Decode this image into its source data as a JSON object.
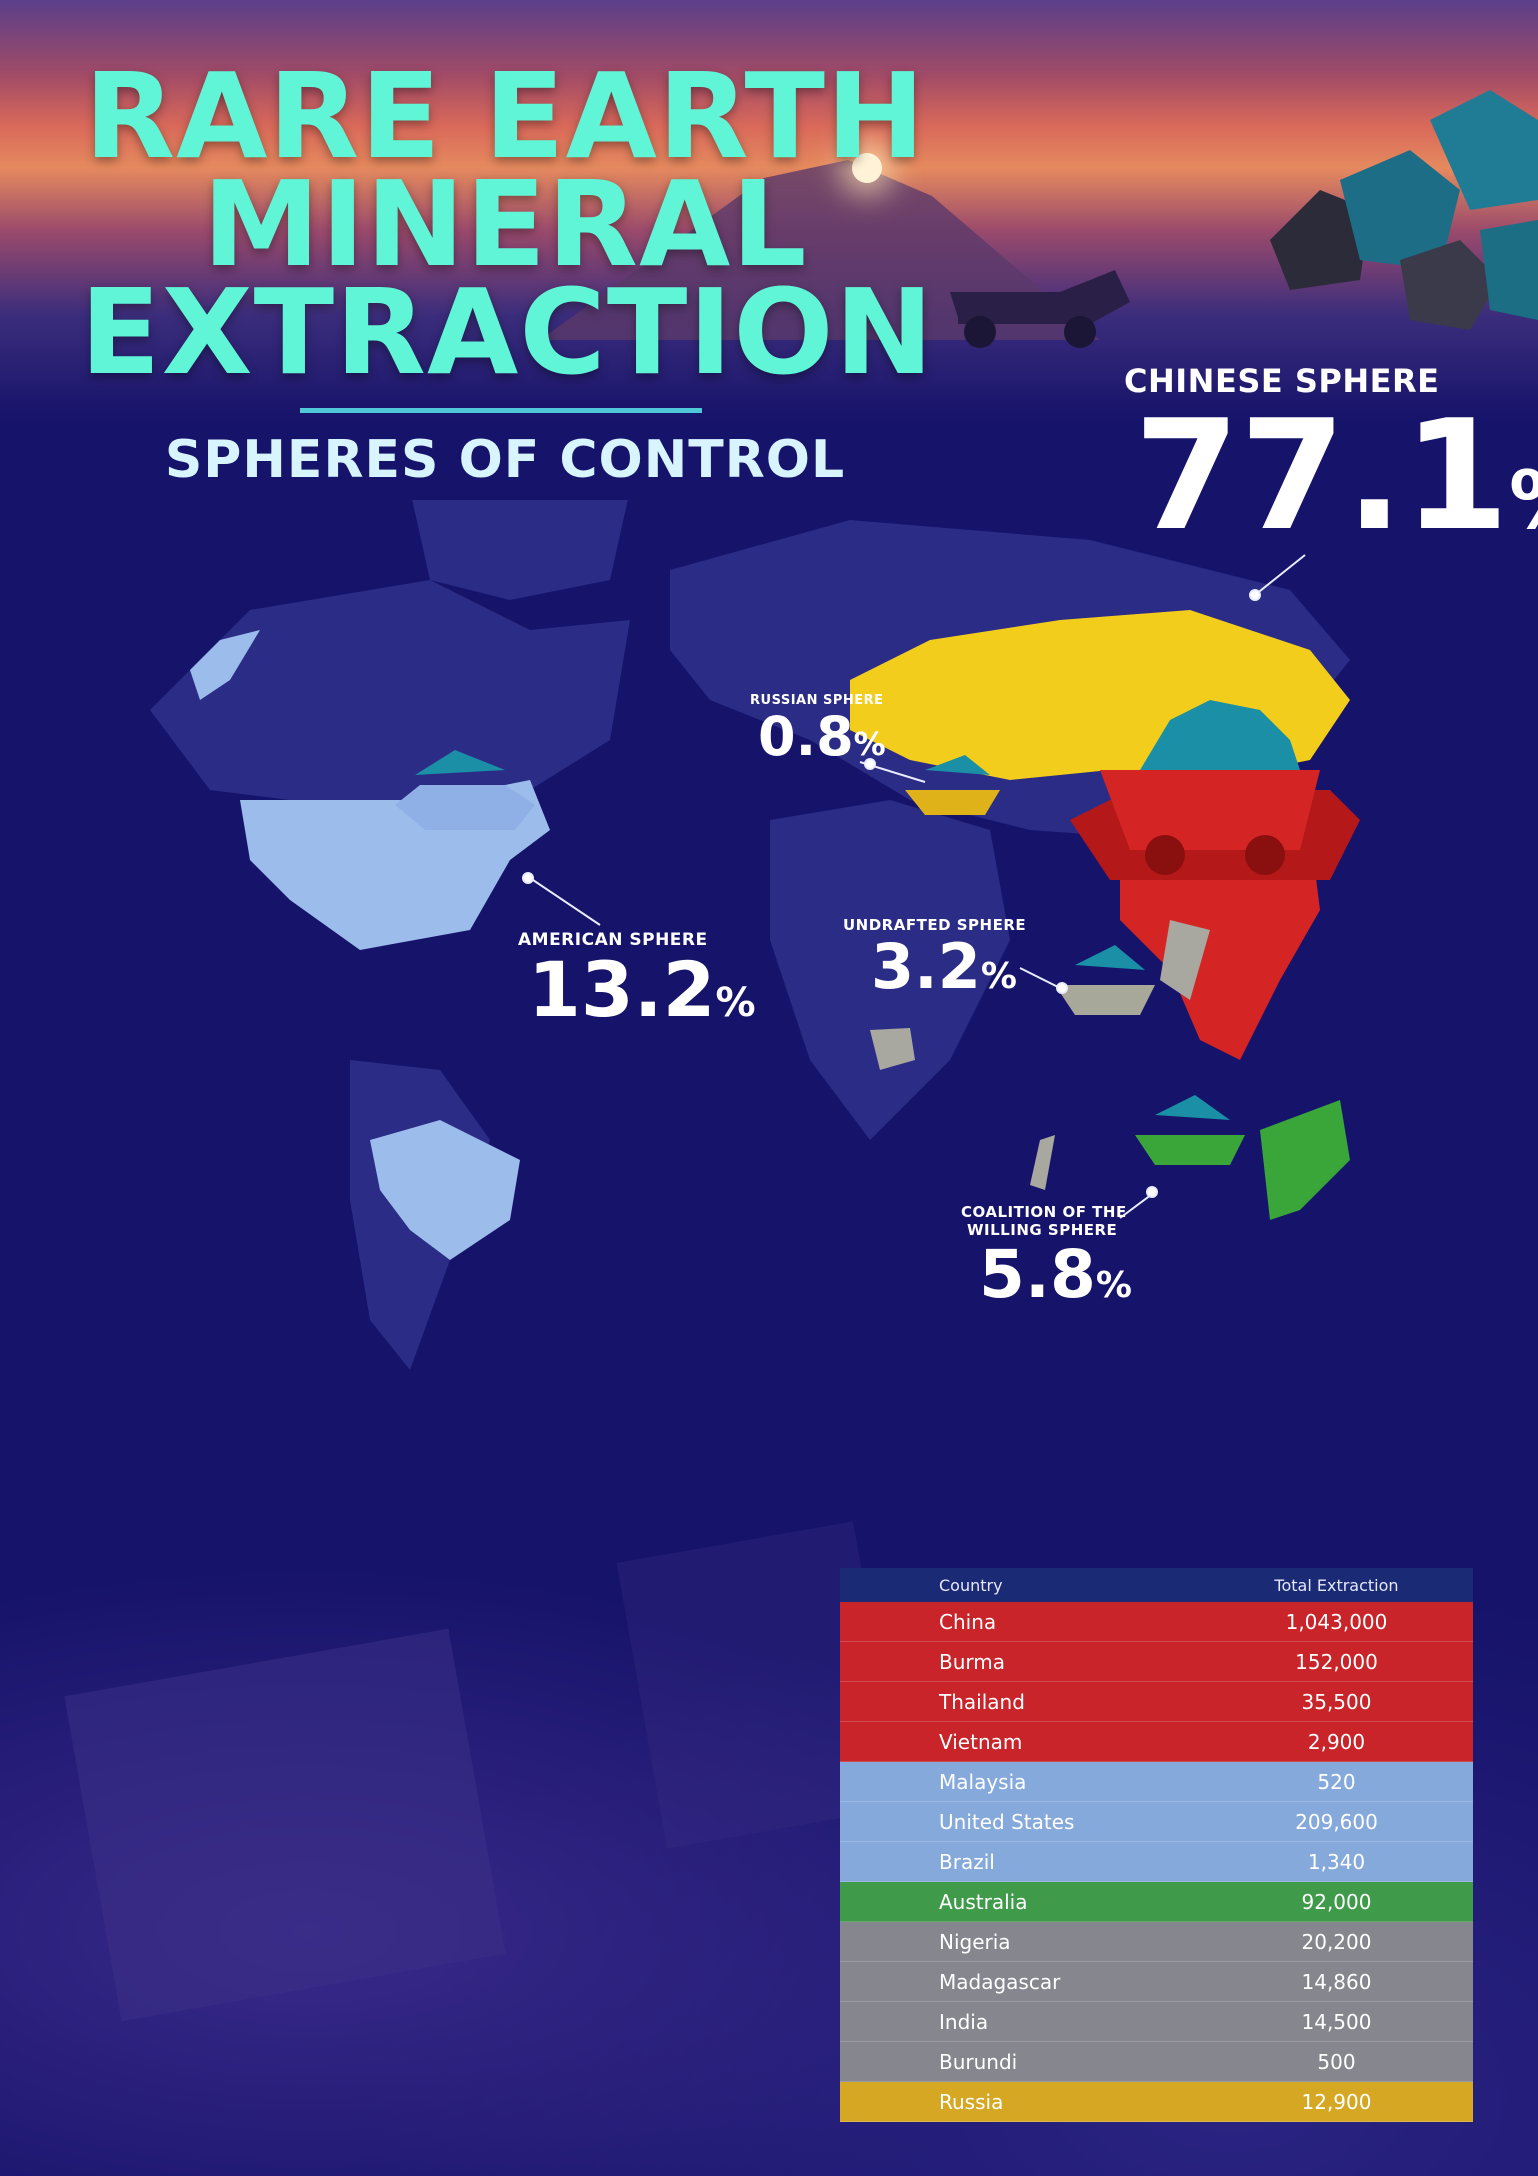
{
  "title": {
    "line1": "RARE EARTH",
    "line2": "MINERAL",
    "line3": "EXTRACTION"
  },
  "subtitle": "SPHERES OF CONTROL",
  "spheres": {
    "chinese": {
      "label": "CHINESE SPHERE",
      "value": "77.1",
      "unit": "%",
      "color": "#d42424"
    },
    "russian": {
      "label": "RUSSIAN SPHERE",
      "value": "0.8",
      "unit": "%",
      "color": "#f2cd1c"
    },
    "american": {
      "label": "AMERICAN SPHERE",
      "value": "13.2",
      "unit": "%",
      "color": "#9cbcec"
    },
    "undrafted": {
      "label": "UNDRAFTED SPHERE",
      "value": "3.2",
      "unit": "%",
      "color": "#a8a8a0"
    },
    "coalition": {
      "label_line1": "COALITION OF THE",
      "label_line2": "WILLING SPHERE",
      "value": "5.8",
      "unit": "%",
      "color": "#3aa63a"
    }
  },
  "table": {
    "headers": {
      "country": "Country",
      "total": "Total Extraction"
    },
    "rows": [
      {
        "country": "China",
        "total": "1,043,000",
        "sphere": "chinese"
      },
      {
        "country": "Burma",
        "total": "152,000",
        "sphere": "chinese"
      },
      {
        "country": "Thailand",
        "total": "35,500",
        "sphere": "chinese"
      },
      {
        "country": "Vietnam",
        "total": "2,900",
        "sphere": "chinese"
      },
      {
        "country": "Malaysia",
        "total": "520",
        "sphere": "american"
      },
      {
        "country": "United States",
        "total": "209,600",
        "sphere": "american"
      },
      {
        "country": "Brazil",
        "total": "1,340",
        "sphere": "american"
      },
      {
        "country": "Australia",
        "total": "92,000",
        "sphere": "coalition"
      },
      {
        "country": "Nigeria",
        "total": "20,200",
        "sphere": "undrafted"
      },
      {
        "country": "Madagascar",
        "total": "14,860",
        "sphere": "undrafted"
      },
      {
        "country": "India",
        "total": "14,500",
        "sphere": "undrafted"
      },
      {
        "country": "Burundi",
        "total": "500",
        "sphere": "undrafted"
      },
      {
        "country": "Russia",
        "total": "12,900",
        "sphere": "russian"
      }
    ],
    "row_colors": {
      "chinese": "#c8242a",
      "american": "#86a9dc",
      "coalition": "#3f9a4a",
      "undrafted": "#85868e",
      "russian": "#d6a722"
    }
  }
}
